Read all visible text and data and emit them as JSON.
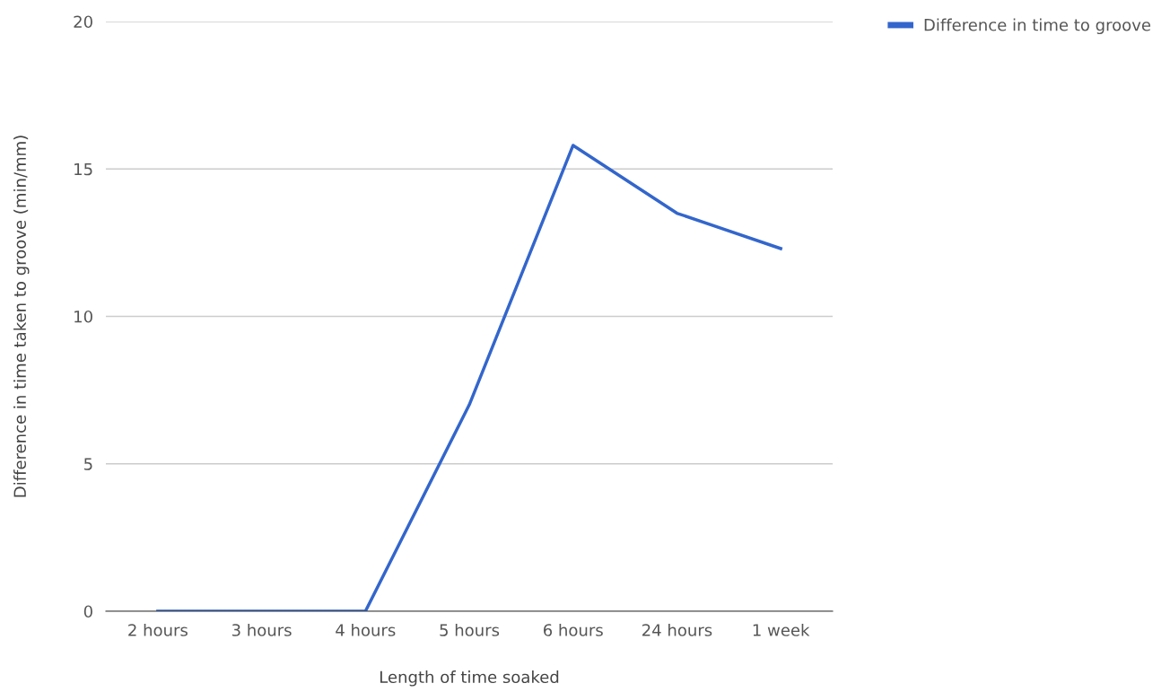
{
  "chart_data": {
    "type": "line",
    "xlabel": "Length of time soaked",
    "ylabel": "Difference in time taken to groove (min/mm)",
    "categories": [
      "2 hours",
      "3 hours",
      "4 hours",
      "5 hours",
      "6 hours",
      "24 hours",
      "1 week"
    ],
    "series": [
      {
        "name": "Difference in time to groove",
        "color": "#3366cc",
        "values": [
          0,
          0,
          0,
          7,
          15.8,
          13.5,
          12.3
        ]
      }
    ],
    "ylim": [
      0,
      20
    ],
    "yticks": [
      0,
      5,
      10,
      15,
      20
    ],
    "grid": "y",
    "legend": "top right",
    "marker": "none",
    "line_style": "solid"
  }
}
